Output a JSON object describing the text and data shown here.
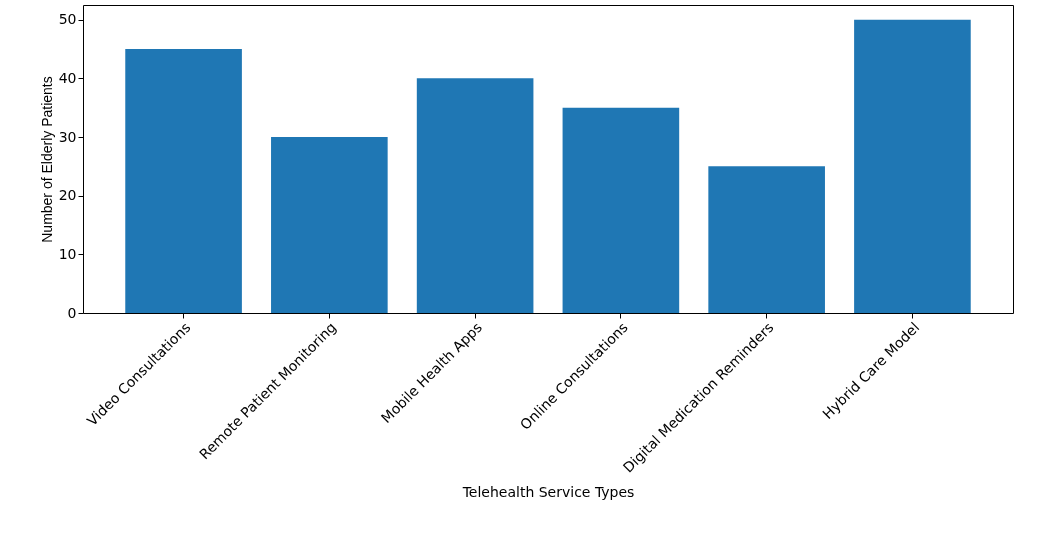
{
  "chart_data": {
    "type": "bar",
    "xlabel": "Telehealth Service Types",
    "ylabel": "Number of Elderly Patients",
    "categories": [
      "Video Consultations",
      "Remote Patient Monitoring",
      "Mobile Health Apps",
      "Online Consultations",
      "Digital Medication Reminders",
      "Hybrid Care Model"
    ],
    "values": [
      45,
      30,
      40,
      35,
      25,
      50
    ],
    "color": "#1f77b4",
    "ylim": [
      0,
      52.5
    ],
    "yticks": [
      0,
      10,
      20,
      30,
      40,
      50
    ],
    "grid": false
  }
}
